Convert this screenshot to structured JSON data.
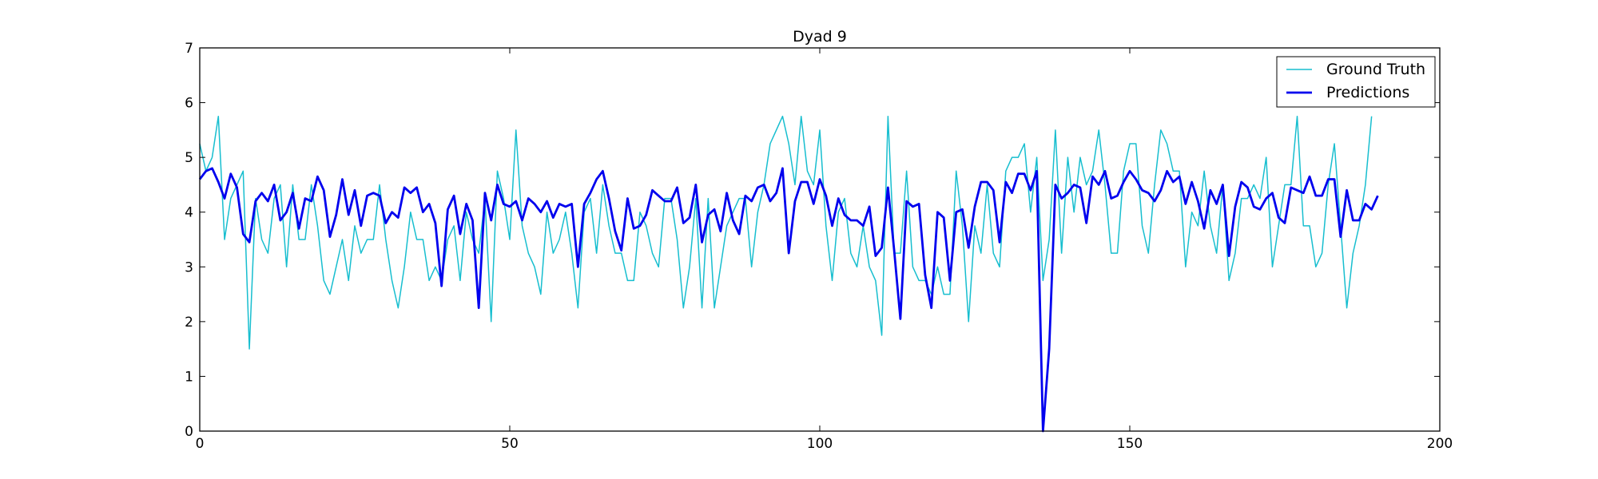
{
  "chart_data": {
    "type": "line",
    "title": "Dyad 9",
    "xlabel": "",
    "ylabel": "",
    "xlim": [
      0,
      200
    ],
    "ylim": [
      0,
      7
    ],
    "x_ticks": [
      0,
      50,
      100,
      150,
      200
    ],
    "y_ticks": [
      0,
      1,
      2,
      3,
      4,
      5,
      6,
      7
    ],
    "grid": false,
    "legend_position": "top-right",
    "series": [
      {
        "name": "Ground Truth",
        "color": "#17becf",
        "style": "thin",
        "values": [
          5.25,
          4.75,
          5.0,
          5.75,
          3.5,
          4.25,
          4.5,
          4.75,
          1.5,
          4.25,
          3.5,
          3.25,
          4.25,
          4.5,
          3.0,
          4.5,
          3.5,
          3.5,
          4.5,
          3.75,
          2.75,
          2.5,
          3.0,
          3.5,
          2.75,
          3.75,
          3.25,
          3.5,
          3.5,
          4.5,
          3.5,
          2.75,
          2.25,
          3.0,
          4.0,
          3.5,
          3.5,
          2.75,
          3.0,
          2.75,
          3.5,
          3.75,
          2.75,
          4.0,
          3.5,
          3.25,
          4.25,
          2.0,
          4.75,
          4.25,
          3.5,
          5.5,
          3.75,
          3.25,
          3.0,
          2.5,
          4.0,
          3.25,
          3.5,
          4.0,
          3.25,
          2.25,
          4.0,
          4.25,
          3.25,
          4.5,
          3.75,
          3.25,
          3.25,
          2.75,
          2.75,
          4.0,
          3.75,
          3.25,
          3.0,
          4.25,
          4.25,
          3.5,
          2.25,
          3.0,
          4.25,
          2.25,
          4.25,
          2.25,
          3.0,
          3.75,
          4.0,
          4.25,
          4.25,
          3.0,
          4.0,
          4.5,
          5.25,
          5.5,
          5.75,
          5.25,
          4.5,
          5.75,
          4.75,
          4.5,
          5.5,
          3.75,
          2.75,
          4.0,
          4.25,
          3.25,
          3.0,
          3.75,
          3.0,
          2.75,
          1.75,
          5.75,
          3.25,
          3.25,
          4.75,
          3.0,
          2.75,
          2.75,
          2.5,
          3.0,
          2.5,
          2.5,
          4.75,
          3.75,
          2.0,
          3.75,
          3.25,
          4.5,
          3.25,
          3.0,
          4.75,
          5.0,
          5.0,
          5.25,
          4.0,
          5.0,
          2.75,
          3.5,
          5.5,
          3.25,
          5.0,
          4.0,
          5.0,
          4.5,
          4.75,
          5.5,
          4.5,
          3.25,
          3.25,
          4.75,
          5.25,
          5.25,
          3.75,
          3.25,
          4.5,
          5.5,
          5.25,
          4.75,
          4.75,
          3.0,
          4.0,
          3.75,
          4.75,
          3.75,
          3.25,
          4.5,
          2.75,
          3.25,
          4.25,
          4.25,
          4.5,
          4.25,
          5.0,
          3.0,
          3.75,
          4.5,
          4.5,
          5.75,
          3.75,
          3.75,
          3.0,
          3.25,
          4.5,
          5.25,
          3.75,
          2.25,
          3.25,
          3.75,
          4.5,
          5.75
        ]
      },
      {
        "name": "Predictions",
        "color": "#0000ee",
        "style": "thick",
        "values": [
          4.6,
          4.75,
          4.8,
          4.55,
          4.25,
          4.7,
          4.45,
          3.6,
          3.45,
          4.2,
          4.35,
          4.2,
          4.5,
          3.85,
          4.0,
          4.35,
          3.7,
          4.25,
          4.2,
          4.65,
          4.4,
          3.55,
          3.95,
          4.6,
          3.95,
          4.4,
          3.75,
          4.3,
          4.35,
          4.3,
          3.8,
          4.0,
          3.9,
          4.45,
          4.35,
          4.45,
          4.0,
          4.15,
          3.8,
          2.65,
          4.05,
          4.3,
          3.6,
          4.15,
          3.85,
          2.25,
          4.35,
          3.85,
          4.5,
          4.15,
          4.1,
          4.2,
          3.85,
          4.25,
          4.15,
          4.0,
          4.2,
          3.9,
          4.15,
          4.1,
          4.15,
          3.0,
          4.15,
          4.35,
          4.6,
          4.75,
          4.25,
          3.65,
          3.3,
          4.25,
          3.7,
          3.75,
          3.95,
          4.4,
          4.3,
          4.2,
          4.2,
          4.45,
          3.8,
          3.9,
          4.5,
          3.45,
          3.95,
          4.05,
          3.65,
          4.35,
          3.85,
          3.6,
          4.3,
          4.2,
          4.45,
          4.5,
          4.2,
          4.35,
          4.8,
          3.25,
          4.2,
          4.55,
          4.55,
          4.15,
          4.6,
          4.3,
          3.75,
          4.25,
          3.95,
          3.85,
          3.85,
          3.75,
          4.1,
          3.2,
          3.35,
          4.45,
          3.3,
          2.05,
          4.2,
          4.1,
          4.15,
          2.85,
          2.25,
          4.0,
          3.9,
          2.75,
          4.0,
          4.05,
          3.35,
          4.1,
          4.55,
          4.55,
          4.4,
          3.45,
          4.55,
          4.35,
          4.7,
          4.7,
          4.4,
          4.75,
          0.0,
          1.5,
          4.5,
          4.25,
          4.35,
          4.5,
          4.45,
          3.8,
          4.65,
          4.5,
          4.75,
          4.25,
          4.3,
          4.55,
          4.75,
          4.6,
          4.4,
          4.35,
          4.2,
          4.4,
          4.75,
          4.55,
          4.65,
          4.15,
          4.55,
          4.2,
          3.7,
          4.4,
          4.15,
          4.5,
          3.2,
          4.1,
          4.55,
          4.45,
          4.1,
          4.05,
          4.25,
          4.35,
          3.9,
          3.8,
          4.45,
          4.4,
          4.35,
          4.65,
          4.3,
          4.3,
          4.6,
          4.6,
          3.55,
          4.4,
          3.85,
          3.85,
          4.15,
          4.05,
          4.3
        ]
      }
    ]
  }
}
